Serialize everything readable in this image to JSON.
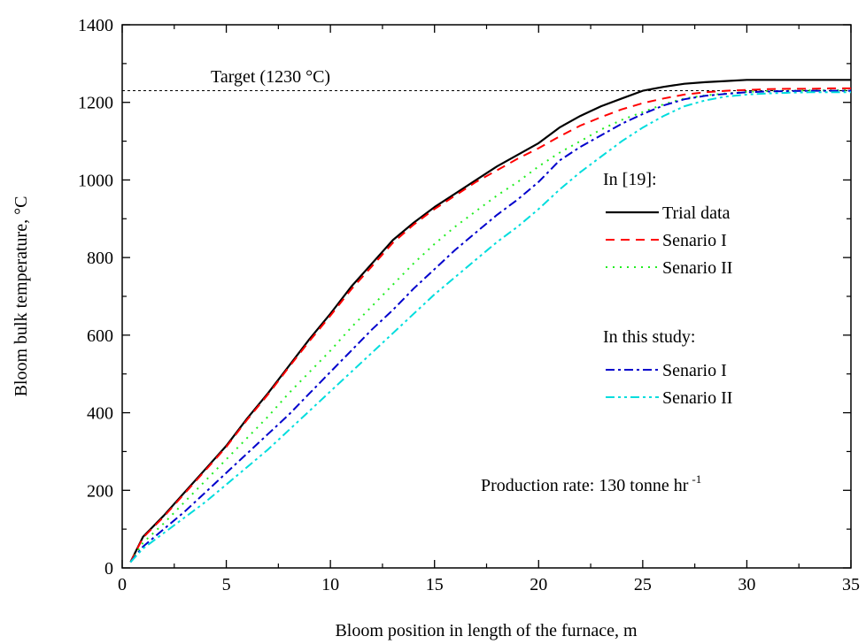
{
  "chart_data": {
    "type": "line",
    "xlabel": "Bloom position in length of the furnace, m",
    "ylabel": "Bloom bulk temperature, °C",
    "xlim": [
      0,
      35
    ],
    "ylim": [
      0,
      1400
    ],
    "xticks": [
      0,
      5,
      10,
      15,
      20,
      25,
      30,
      35
    ],
    "yticks": [
      0,
      200,
      400,
      600,
      800,
      1000,
      1200,
      1400
    ],
    "grid": false,
    "legend_position": "right",
    "legend_groups": [
      {
        "heading": "In [19]:",
        "series": [
          0,
          1,
          2
        ]
      },
      {
        "heading": "In this study:",
        "series": [
          3,
          4
        ]
      }
    ],
    "target_line": {
      "label": "Target (1230 °C)",
      "y": 1230
    },
    "annotation": {
      "text": "Production rate: 130 tonne hr",
      "superscript": "-1"
    },
    "series": [
      {
        "name": "Trial data",
        "color": "#000000",
        "dash": "",
        "x": [
          0.4,
          1,
          2,
          3,
          4,
          5,
          6,
          7,
          8,
          9,
          10,
          11,
          12,
          13,
          14,
          15,
          16,
          17,
          18,
          19,
          20,
          21,
          22,
          23,
          24,
          25,
          26,
          27,
          28,
          29,
          30,
          31,
          32,
          33,
          34,
          35
        ],
        "y": [
          15,
          80,
          135,
          195,
          255,
          315,
          385,
          450,
          520,
          590,
          655,
          725,
          785,
          845,
          890,
          930,
          965,
          1000,
          1035,
          1065,
          1095,
          1135,
          1165,
          1190,
          1210,
          1230,
          1240,
          1248,
          1252,
          1255,
          1258,
          1258,
          1258,
          1258,
          1258,
          1258
        ]
      },
      {
        "name": "Senario I",
        "color": "#ff0000",
        "dash": "10,7",
        "x": [
          0.4,
          1,
          2,
          3,
          4,
          5,
          6,
          7,
          8,
          9,
          10,
          11,
          12,
          13,
          14,
          15,
          16,
          17,
          18,
          19,
          20,
          21,
          22,
          23,
          24,
          25,
          26,
          27,
          28,
          29,
          30,
          31,
          32,
          33,
          34,
          35
        ],
        "y": [
          15,
          78,
          132,
          192,
          252,
          312,
          382,
          447,
          517,
          585,
          650,
          718,
          778,
          838,
          885,
          925,
          960,
          995,
          1025,
          1055,
          1082,
          1112,
          1140,
          1162,
          1182,
          1198,
          1210,
          1220,
          1226,
          1230,
          1232,
          1234,
          1235,
          1235,
          1236,
          1236
        ]
      },
      {
        "name": "Senario II",
        "color": "#22ee22",
        "dash": "2,6",
        "x": [
          0.4,
          1,
          2,
          3,
          4,
          5,
          6,
          7,
          8,
          9,
          10,
          11,
          12,
          13,
          14,
          15,
          16,
          17,
          18,
          19,
          20,
          21,
          22,
          23,
          24,
          25,
          26,
          27,
          28,
          29,
          30,
          31,
          32,
          33,
          34,
          35
        ],
        "y": [
          15,
          65,
          115,
          170,
          225,
          280,
          335,
          390,
          450,
          505,
          560,
          620,
          675,
          730,
          785,
          835,
          880,
          920,
          960,
          995,
          1035,
          1070,
          1100,
          1130,
          1155,
          1175,
          1195,
          1210,
          1218,
          1223,
          1227,
          1229,
          1230,
          1231,
          1231,
          1232
        ]
      },
      {
        "name": "Senario I",
        "color": "#0000cc",
        "dash": "10,4,3,4",
        "x": [
          0.4,
          1,
          2,
          3,
          4,
          5,
          6,
          7,
          8,
          9,
          10,
          11,
          12,
          13,
          14,
          15,
          16,
          17,
          18,
          19,
          20,
          21,
          22,
          23,
          24,
          25,
          26,
          27,
          28,
          29,
          30,
          31,
          32,
          33,
          34,
          35
        ],
        "y": [
          15,
          55,
          100,
          145,
          195,
          245,
          295,
          345,
          395,
          450,
          505,
          560,
          615,
          665,
          720,
          770,
          820,
          865,
          910,
          950,
          995,
          1050,
          1085,
          1115,
          1145,
          1170,
          1192,
          1208,
          1217,
          1222,
          1226,
          1228,
          1229,
          1230,
          1230,
          1230
        ]
      },
      {
        "name": "Senario II",
        "color": "#00dddd",
        "dash": "10,4,3,4,3,4",
        "x": [
          0.4,
          1,
          2,
          3,
          4,
          5,
          6,
          7,
          8,
          9,
          10,
          11,
          12,
          13,
          14,
          15,
          16,
          17,
          18,
          19,
          20,
          21,
          22,
          23,
          24,
          25,
          26,
          27,
          28,
          29,
          30,
          31,
          32,
          33,
          34,
          35
        ],
        "y": [
          15,
          50,
          90,
          130,
          170,
          215,
          260,
          305,
          355,
          405,
          455,
          505,
          555,
          605,
          655,
          705,
          750,
          795,
          840,
          880,
          925,
          975,
          1020,
          1060,
          1100,
          1135,
          1165,
          1190,
          1205,
          1215,
          1220,
          1223,
          1225,
          1226,
          1226,
          1226
        ]
      }
    ]
  }
}
